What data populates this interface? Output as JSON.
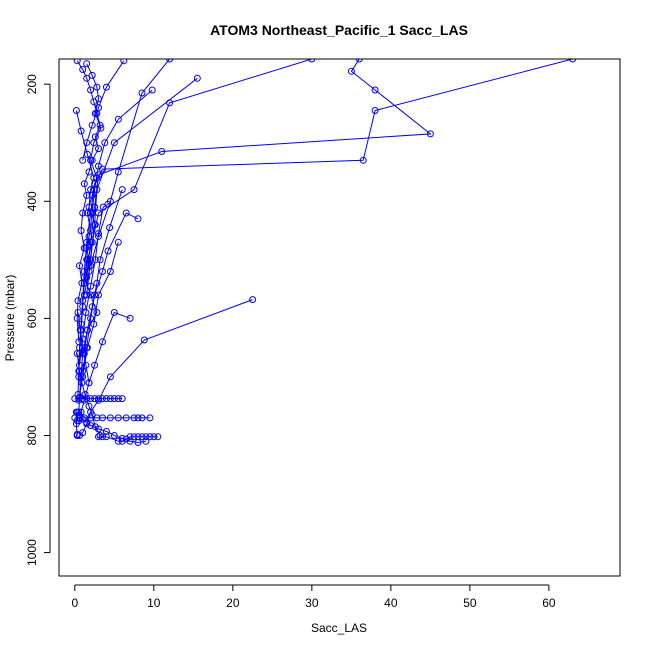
{
  "chart_data": {
    "type": "line",
    "title": "ATOM3 Northeast_Pacific_1 Sacc_LAS",
    "xlabel": "Sacc_LAS",
    "ylabel": "Pressure (mbar)",
    "xlim": [
      -2,
      69
    ],
    "ylim": [
      1040,
      157
    ],
    "y_reversed": true,
    "grid": false,
    "legend": "none",
    "marker": "open-circle",
    "series_color": "#0000ff",
    "xticks": [
      0,
      10,
      20,
      30,
      40,
      50,
      60
    ],
    "yticks": [
      200,
      400,
      600,
      800,
      1000
    ],
    "series": [
      {
        "x": [
          0.3,
          1.0,
          1.5,
          2.0,
          2.4,
          2.8,
          3.2,
          2.6,
          3.0,
          2.2,
          1.8,
          1.2,
          1.5,
          1.0,
          0.8,
          1.2,
          0.6,
          0.9,
          0.4,
          0.3,
          0.5
        ],
        "y": [
          160,
          175,
          190,
          210,
          230,
          250,
          270,
          290,
          310,
          330,
          350,
          370,
          390,
          420,
          450,
          480,
          510,
          540,
          570,
          600,
          640
        ]
      },
      {
        "x": [
          1.5,
          2.2,
          2.8,
          3.0,
          2.6,
          3.3,
          2.4,
          2.0,
          2.8,
          2.2,
          1.6,
          2.0,
          1.4,
          1.8,
          1.2,
          1.0,
          0.8,
          0.6,
          0.5,
          0.4
        ],
        "y": [
          165,
          185,
          205,
          225,
          250,
          275,
          300,
          330,
          360,
          390,
          420,
          450,
          480,
          510,
          540,
          570,
          610,
          650,
          690,
          730
        ]
      },
      {
        "x": [
          0.2,
          0.8,
          1.6,
          2.4,
          2.0,
          1.8,
          2.6,
          2.2,
          1.6,
          1.2,
          2.0,
          2.8,
          1.6,
          1.0,
          0.8,
          0.6,
          0.5,
          0.3
        ],
        "y": [
          245,
          280,
          320,
          360,
          380,
          410,
          440,
          470,
          500,
          530,
          560,
          590,
          620,
          660,
          700,
          735,
          760,
          775
        ]
      },
      {
        "x": [
          9.8,
          5.5,
          3.8,
          3.0,
          2.5,
          2.2,
          1.8,
          1.5,
          1.2,
          1.0,
          0.8,
          0.6,
          0.5
        ],
        "y": [
          210,
          260,
          300,
          340,
          380,
          420,
          460,
          500,
          540,
          580,
          620,
          660,
          700
        ]
      },
      {
        "x": [
          63,
          38,
          36.5,
          3.5,
          2.5,
          2.0,
          1.5,
          1.2,
          1.0
        ],
        "y": [
          157,
          245,
          330,
          345,
          370,
          420,
          470,
          520,
          570
        ]
      },
      {
        "x": [
          36,
          35,
          38,
          45,
          11,
          3.0,
          2.5,
          2.0,
          1.5
        ],
        "y": [
          157,
          178,
          210,
          285,
          315,
          355,
          410,
          470,
          530
        ]
      },
      {
        "x": [
          30,
          12,
          7.5,
          3.0,
          2.2,
          1.8,
          1.2
        ],
        "y": [
          157,
          232,
          380,
          420,
          470,
          520,
          560
        ]
      },
      {
        "x": [
          15.5,
          5.0,
          2.8,
          2.5,
          2.0,
          1.5
        ],
        "y": [
          190,
          300,
          380,
          440,
          500,
          560
        ]
      },
      {
        "x": [
          12,
          8.5,
          5.5,
          4.5,
          3.0,
          2.0
        ],
        "y": [
          157,
          215,
          350,
          400,
          460,
          510
        ]
      },
      {
        "x": [
          22.5,
          8.8,
          4.5,
          3.0,
          2.0,
          1.5,
          1.0,
          0.6
        ],
        "y": [
          568,
          637,
          700,
          740,
          760,
          780,
          795,
          800
        ]
      },
      {
        "x": [
          7.0,
          5.0,
          3.5,
          2.5,
          1.8,
          1.2,
          0.8,
          0.5
        ],
        "y": [
          600,
          590,
          640,
          680,
          710,
          740,
          760,
          775
        ]
      },
      {
        "x": [
          5.5,
          4.5,
          3.0,
          2.4,
          1.6,
          1.0,
          0.5
        ],
        "y": [
          470,
          520,
          560,
          610,
          650,
          700,
          740
        ]
      },
      {
        "x": [
          8.0,
          6.5,
          4.2,
          3.5,
          2.5,
          2.0,
          1.5,
          1.0
        ],
        "y": [
          430,
          420,
          485,
          520,
          560,
          600,
          650,
          690
        ]
      },
      {
        "x": [
          6.0,
          4.4,
          3.2,
          2.8,
          2.2,
          1.6,
          1.2
        ],
        "y": [
          380,
          445,
          500,
          540,
          580,
          620,
          660
        ]
      },
      {
        "x": [
          4.2,
          3.6,
          3.0,
          2.6,
          2.0,
          1.4,
          1.0,
          0.6
        ],
        "y": [
          405,
          410,
          455,
          500,
          545,
          590,
          635,
          680
        ]
      },
      {
        "x": [
          6.2,
          4.0,
          3.0,
          2.2,
          1.5,
          1.0
        ],
        "y": [
          160,
          205,
          240,
          270,
          300,
          330
        ]
      },
      {
        "x": [
          0,
          0.5,
          1.0,
          1.5,
          2.0,
          2.5,
          3.0,
          3.5,
          4.0,
          4.5,
          5.0,
          5.5,
          6.0
        ],
        "y": [
          737,
          737,
          737,
          737,
          737,
          737,
          737,
          737,
          737,
          737,
          737,
          737,
          737
        ]
      },
      {
        "x": [
          0,
          0.6,
          1.2,
          2.0,
          2.8,
          3.5,
          4.5,
          5.5,
          6.5,
          7.5,
          8.0,
          8.5,
          9.5
        ],
        "y": [
          770,
          770,
          770,
          770,
          770,
          770,
          770,
          770,
          770,
          770,
          770,
          770,
          770
        ]
      },
      {
        "x": [
          3.0,
          3.5,
          4.0,
          5.5,
          6.0,
          6.5,
          7.0,
          7.5,
          8.0,
          8.5,
          9.0,
          9.5,
          10.0,
          10.5
        ],
        "y": [
          802,
          802,
          802,
          810,
          810,
          806,
          802,
          802,
          802,
          802,
          802,
          802,
          802,
          802
        ]
      },
      {
        "x": [
          0.2,
          0.5,
          1.0,
          1.5,
          2.0,
          3.0,
          4.0,
          5.0,
          6.0,
          7.0,
          8.0,
          9.0
        ],
        "y": [
          760,
          765,
          772,
          778,
          783,
          789,
          793,
          800,
          805,
          810,
          812,
          810
        ]
      },
      {
        "x": [
          0.3,
          0.6,
          0.9,
          1.3,
          1.8,
          2.2,
          2.6,
          3.2
        ],
        "y": [
          660,
          690,
          710,
          730,
          750,
          765,
          785,
          800
        ]
      },
      {
        "x": [
          0.4,
          0.7,
          1.0,
          1.4,
          1.8
        ],
        "y": [
          590,
          620,
          650,
          680,
          710
        ]
      },
      {
        "x": [
          0.3,
          0.3,
          0.2,
          0.3
        ],
        "y": [
          798,
          800,
          780,
          760
        ]
      }
    ]
  }
}
